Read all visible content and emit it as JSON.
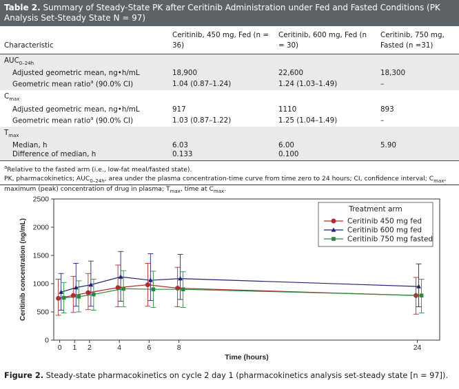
{
  "table": {
    "title_label": "Table 2.",
    "title_text": "Summary of Steady-State PK after Ceritinib Administration under Fed and Fasted Conditions (PK Analysis Set-Steady State N = 97)",
    "headers": [
      "Characteristic",
      "Ceritinib, 450 mg, Fed (n = 36)",
      "Ceritinib, 600 mg, Fed (n = 30)",
      "Ceritinib, 750 mg, Fasted (n =31)"
    ],
    "groups": [
      {
        "name": "AUC",
        "name_sub": "0–24h",
        "rows": [
          {
            "label": "Adjusted geometric mean, ng•h/mL",
            "sup": "",
            "values": [
              "18,900",
              "22,600",
              "18,300"
            ]
          },
          {
            "label": "Geometric mean ratio",
            "sup": "a",
            "label_tail": " (90.0% CI)",
            "values": [
              "1.04 (0.87–1.24)",
              "1.24 (1.03–1.49)",
              "–"
            ]
          }
        ]
      },
      {
        "name": "C",
        "name_sub": "max",
        "rows": [
          {
            "label": "Adjusted geometric mean, ng•h/mL",
            "sup": "",
            "values": [
              "917",
              "1110",
              "893"
            ]
          },
          {
            "label": "Geometric mean ratio",
            "sup": "a",
            "label_tail": " (90.0% CI)",
            "values": [
              "1.03 (0.87–1.22)",
              "1.25 (1.04–1.49)",
              "–"
            ]
          }
        ]
      },
      {
        "name": "T",
        "name_sub": "max",
        "rows": [
          {
            "label": "Median, h",
            "sup": "",
            "values": [
              "6.03",
              "6.00",
              "5.90"
            ]
          },
          {
            "label": "Difference of median, h",
            "sup": "",
            "values": [
              "0.133",
              "0.100",
              ""
            ]
          }
        ]
      }
    ],
    "footnote_a": "Relative to the fasted arm (i.e., low-fat meal/fasted state).",
    "footnote_b_1": "PK, pharmacokinetics; AUC",
    "footnote_b_sub1": "0–24h",
    "footnote_b_2": ", area under the plasma concentration-time curve from time zero to 24 hours; CI, confidence interval; C",
    "footnote_b_sub2": "max",
    "footnote_b_3": ", maximum (peak) concentration of drug in plasma; T",
    "footnote_b_sub3": "max",
    "footnote_b_4": ", time at C",
    "footnote_b_sub4": "max",
    "footnote_b_5": "."
  },
  "chart_data": {
    "type": "line",
    "xlabel": "Time (hours)",
    "ylabel": "Ceritinib concentration (ng/mL)",
    "xlim": [
      -0.4,
      25.5
    ],
    "ylim": [
      0,
      2500
    ],
    "xticks": [
      0,
      1,
      2,
      4,
      6,
      8,
      24
    ],
    "yticks": [
      0,
      500,
      1000,
      1500,
      2000,
      2500
    ],
    "legend_title": "Treatment arm",
    "legend_position": "top-right",
    "grid": false,
    "series": [
      {
        "name": "Ceritinib 450 mg fed",
        "color": "#b5282e",
        "marker": "circle",
        "x": [
          0,
          1,
          2,
          4,
          6,
          8,
          24
        ],
        "y": [
          740,
          790,
          840,
          930,
          980,
          920,
          790
        ],
        "upper": [
          1080,
          1130,
          1180,
          1330,
          1360,
          1290,
          1110
        ],
        "lower": [
          440,
          490,
          540,
          590,
          600,
          590,
          460
        ]
      },
      {
        "name": "Ceritinib 600 mg fed",
        "color": "#1c2478",
        "marker": "triangle",
        "x": [
          0,
          1,
          2,
          4,
          6,
          8,
          24
        ],
        "y": [
          850,
          930,
          980,
          1120,
          1060,
          1090,
          950
        ],
        "upper": [
          1180,
          1360,
          1400,
          1570,
          1530,
          1520,
          1350
        ],
        "lower": [
          530,
          600,
          600,
          690,
          700,
          720,
          590
        ]
      },
      {
        "name": "Ceritinib 750 mg fasted",
        "color": "#2a8a3a",
        "marker": "square",
        "x": [
          0,
          1,
          2,
          4,
          6,
          8,
          24
        ],
        "y": [
          750,
          770,
          810,
          910,
          900,
          900,
          790
        ],
        "upper": [
          1020,
          1050,
          1080,
          1230,
          1220,
          1210,
          1080
        ],
        "lower": [
          480,
          500,
          530,
          590,
          580,
          580,
          480
        ]
      }
    ]
  },
  "figure": {
    "caption_label": "Figure 2.",
    "caption_text": "Steady-state pharmacokinetics on cycle 2 day 1 (pharmacokinetics analysis set-steady state [n = 97])."
  }
}
